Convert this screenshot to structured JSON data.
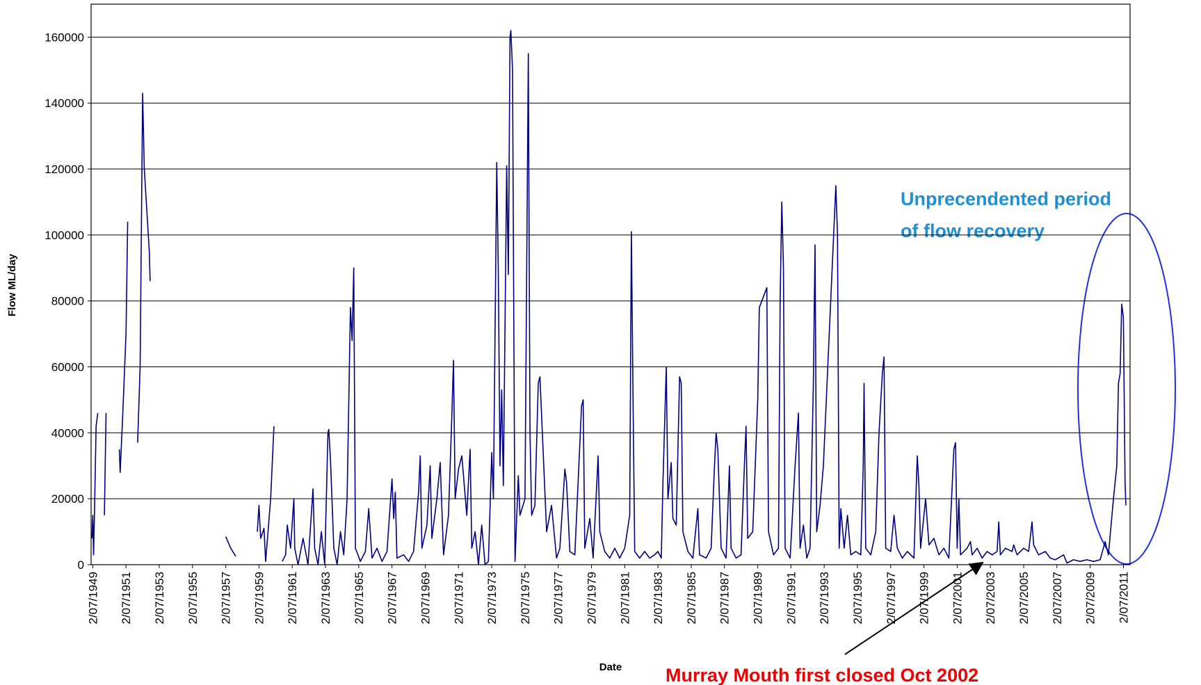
{
  "chart_data": {
    "type": "line",
    "y_label": "Flow ML/day",
    "x_label": "Date",
    "annotations": [
      "Unprecendented period",
      "of flow recovery",
      "Murray Mouth first closed Oct 2002"
    ],
    "xlim": [
      1949.4,
      2011.9
    ],
    "ylim": [
      0,
      170000
    ],
    "yticks": [
      0,
      20000,
      40000,
      60000,
      80000,
      100000,
      120000,
      140000,
      160000
    ],
    "xticks": [
      {
        "value": 1949.5,
        "label": "2/07/1949"
      },
      {
        "value": 1951.5,
        "label": "2/07/1951"
      },
      {
        "value": 1953.5,
        "label": "2/07/1953"
      },
      {
        "value": 1955.5,
        "label": "2/07/1955"
      },
      {
        "value": 1957.5,
        "label": "2/07/1957"
      },
      {
        "value": 1959.5,
        "label": "2/07/1959"
      },
      {
        "value": 1961.5,
        "label": "2/07/1961"
      },
      {
        "value": 1963.5,
        "label": "2/07/1963"
      },
      {
        "value": 1965.5,
        "label": "2/07/1965"
      },
      {
        "value": 1967.5,
        "label": "2/07/1967"
      },
      {
        "value": 1969.5,
        "label": "2/07/1969"
      },
      {
        "value": 1971.5,
        "label": "2/07/1971"
      },
      {
        "value": 1973.5,
        "label": "2/07/1973"
      },
      {
        "value": 1975.5,
        "label": "2/07/1975"
      },
      {
        "value": 1977.5,
        "label": "2/07/1977"
      },
      {
        "value": 1979.5,
        "label": "2/07/1979"
      },
      {
        "value": 1981.5,
        "label": "2/07/1981"
      },
      {
        "value": 1983.5,
        "label": "2/07/1983"
      },
      {
        "value": 1985.5,
        "label": "2/07/1985"
      },
      {
        "value": 1987.5,
        "label": "2/07/1987"
      },
      {
        "value": 1989.5,
        "label": "2/07/1989"
      },
      {
        "value": 1991.5,
        "label": "2/07/1991"
      },
      {
        "value": 1993.5,
        "label": "2/07/1993"
      },
      {
        "value": 1995.5,
        "label": "2/07/1995"
      },
      {
        "value": 1997.5,
        "label": "2/07/1997"
      },
      {
        "value": 1999.5,
        "label": "2/07/1999"
      },
      {
        "value": 2001.5,
        "label": "2/07/2001"
      },
      {
        "value": 2003.5,
        "label": "2/07/2003"
      },
      {
        "value": 2005.5,
        "label": "2/07/2005"
      },
      {
        "value": 2007.5,
        "label": "2/07/2007"
      },
      {
        "value": 2009.5,
        "label": "2/07/2009"
      },
      {
        "value": 2011.5,
        "label": "2/07/2011"
      }
    ],
    "grid": true,
    "x": [
      1949.45,
      1949.5,
      1949.55,
      1949.6,
      1949.7,
      1949.8,
      1950.0,
      1950.2,
      1950.3,
      1950.7,
      1951.1,
      1951.15,
      1951.3,
      1951.5,
      1951.6,
      1951.9,
      1952.2,
      1952.35,
      1952.5,
      1952.6,
      1952.9,
      1952.95,
      1955,
      1957.5,
      1957.8,
      1958.1,
      1958.8,
      1959.4,
      1959.5,
      1959.6,
      1959.8,
      1959.9,
      1960.2,
      1960.4,
      1960.6,
      1960.9,
      1961.1,
      1961.2,
      1961.4,
      1961.6,
      1961.65,
      1961.85,
      1962.15,
      1962.45,
      1962.75,
      1962.85,
      1963.05,
      1963.25,
      1963.45,
      1963.65,
      1963.7,
      1963.8,
      1964.0,
      1964.2,
      1964.4,
      1964.6,
      1964.8,
      1965.0,
      1965.1,
      1965.2,
      1965.3,
      1965.6,
      1965.9,
      1966.1,
      1966.3,
      1966.6,
      1966.9,
      1967.2,
      1967.5,
      1967.6,
      1967.7,
      1967.8,
      1968.2,
      1968.5,
      1968.8,
      1969.1,
      1969.2,
      1969.3,
      1969.6,
      1969.8,
      1969.9,
      1970.2,
      1970.4,
      1970.6,
      1970.9,
      1971.1,
      1971.2,
      1971.3,
      1971.5,
      1971.7,
      1972.0,
      1972.2,
      1972.3,
      1972.5,
      1972.7,
      1972.9,
      1973.1,
      1973.3,
      1973.5,
      1973.6,
      1973.8,
      1973.9,
      1974.0,
      1974.1,
      1974.2,
      1974.4,
      1974.5,
      1974.6,
      1974.65,
      1974.75,
      1974.9,
      1975.1,
      1975.2,
      1975.5,
      1975.7,
      1975.8,
      1975.9,
      1976.1,
      1976.3,
      1976.4,
      1976.8,
      1977.1,
      1977.4,
      1977.6,
      1977.9,
      1978.0,
      1978.2,
      1978.5,
      1978.9,
      1979.0,
      1979.1,
      1979.4,
      1979.6,
      1979.9,
      1980.0,
      1980.3,
      1980.6,
      1980.9,
      1981.2,
      1981.5,
      1981.8,
      1981.9,
      1982.0,
      1982.1,
      1982.4,
      1982.7,
      1983.0,
      1983.3,
      1983.5,
      1983.7,
      1983.8,
      1984.0,
      1984.1,
      1984.3,
      1984.4,
      1984.6,
      1984.8,
      1984.9,
      1985.0,
      1985.3,
      1985.6,
      1985.9,
      1986.0,
      1986.4,
      1986.7,
      1986.9,
      1987.0,
      1987.1,
      1987.3,
      1987.6,
      1987.8,
      1987.9,
      1988.2,
      1988.5,
      1988.7,
      1988.8,
      1988.9,
      1989.2,
      1989.5,
      1989.6,
      1990.05,
      1990.15,
      1990.45,
      1990.75,
      1990.85,
      1990.95,
      1991.05,
      1991.15,
      1991.45,
      1991.75,
      1991.95,
      1992.05,
      1992.25,
      1992.45,
      1992.65,
      1992.85,
      1992.95,
      1993.05,
      1993.25,
      1993.45,
      1994.2,
      1994.3,
      1994.4,
      1994.5,
      1994.7,
      1994.9,
      1995.1,
      1995.4,
      1995.7,
      1995.85,
      1995.9,
      1996.0,
      1996.3,
      1996.6,
      1996.8,
      1997.0,
      1997.1,
      1997.2,
      1997.5,
      1997.7,
      1997.9,
      1998.2,
      1998.5,
      1998.9,
      1999.1,
      1999.2,
      1999.3,
      1999.6,
      1999.8,
      2000.1,
      2000.4,
      2000.7,
      2001.0,
      2001.3,
      2001.4,
      2001.5,
      2001.6,
      2001.7,
      2002.1,
      2002.3,
      2002.4,
      2002.7,
      2003.0,
      2003.3,
      2003.6,
      2003.9,
      2004.0,
      2004.1,
      2004.4,
      2004.8,
      2004.9,
      2005.1,
      2005.5,
      2005.8,
      2006.0,
      2006.1,
      2006.4,
      2006.8,
      2007.1,
      2007.4,
      2007.9,
      2008.1,
      2008.5,
      2008.9,
      2009.3,
      2009.7,
      2010.1,
      2010.4,
      2010.6,
      2010.9,
      2011.1,
      2011.2,
      2011.3,
      2011.4,
      2011.5,
      2011.6,
      2011.65
    ],
    "series": [
      {
        "color": "#000080",
        "values": [
          8000,
          15000,
          3000,
          15000,
          42000,
          46000,
          null,
          15000,
          46000,
          null,
          35000,
          28000,
          45000,
          70000,
          104000,
          null,
          37000,
          60000,
          143000,
          120000,
          95000,
          86000,
          null,
          8500,
          5000,
          2500,
          null,
          10000,
          18000,
          8000,
          11000,
          1000,
          20000,
          42000,
          null,
          1000,
          3000,
          12000,
          5000,
          20000,
          5000,
          0,
          8000,
          0,
          23000,
          5000,
          0,
          10000,
          0,
          40000,
          41000,
          32000,
          5000,
          0,
          10000,
          3000,
          20000,
          78000,
          68000,
          90000,
          5000,
          1000,
          4000,
          17000,
          2000,
          5000,
          1000,
          4000,
          26000,
          14000,
          22000,
          2000,
          3000,
          1000,
          4000,
          22000,
          33000,
          5000,
          12000,
          30000,
          8000,
          20000,
          31000,
          3000,
          15000,
          45000,
          62000,
          20000,
          29000,
          33000,
          15000,
          35000,
          5000,
          10000,
          0,
          12000,
          0,
          1000,
          34000,
          20000,
          122000,
          88000,
          30000,
          53000,
          24000,
          121000,
          88000,
          160000,
          162000,
          150000,
          1000,
          27000,
          15000,
          20000,
          155000,
          40000,
          15000,
          18000,
          55000,
          57000,
          10000,
          18000,
          2000,
          5000,
          29000,
          25000,
          4000,
          3000,
          48000,
          50000,
          5000,
          14000,
          2000,
          33000,
          10000,
          4000,
          2000,
          5000,
          2000,
          5000,
          15000,
          101000,
          50000,
          4000,
          2000,
          4000,
          2000,
          3000,
          4000,
          2000,
          25000,
          60000,
          20000,
          31000,
          14000,
          12000,
          57000,
          55000,
          10000,
          4000,
          2000,
          17000,
          3000,
          2000,
          5000,
          30000,
          40000,
          35000,
          5000,
          2000,
          30000,
          5000,
          2000,
          3000,
          30000,
          42000,
          8000,
          10000,
          50000,
          78000,
          84000,
          10000,
          3000,
          5000,
          80000,
          110000,
          90000,
          5000,
          2000,
          30000,
          46000,
          5000,
          12000,
          2000,
          5000,
          55000,
          97000,
          10000,
          18000,
          30000,
          115000,
          100000,
          5000,
          17000,
          5000,
          15000,
          3000,
          4000,
          3000,
          30000,
          55000,
          5000,
          3000,
          10000,
          40000,
          58000,
          63000,
          5000,
          4000,
          15000,
          5000,
          2000,
          4000,
          2000,
          33000,
          24000,
          5000,
          20000,
          6000,
          8000,
          3000,
          5000,
          2000,
          35000,
          37000,
          5000,
          20000,
          3000,
          5000,
          7000,
          3000,
          5000,
          2000,
          4000,
          3000,
          4000,
          13000,
          3000,
          5000,
          4000,
          6000,
          3000,
          5000,
          4000,
          13000,
          6000,
          3000,
          4000,
          2000,
          1500,
          3000,
          500,
          1500,
          1000,
          1500,
          1000,
          1500,
          7000,
          3000,
          20000,
          30000,
          55000,
          58000,
          79000,
          75000,
          25000,
          18000
        ]
      }
    ]
  }
}
